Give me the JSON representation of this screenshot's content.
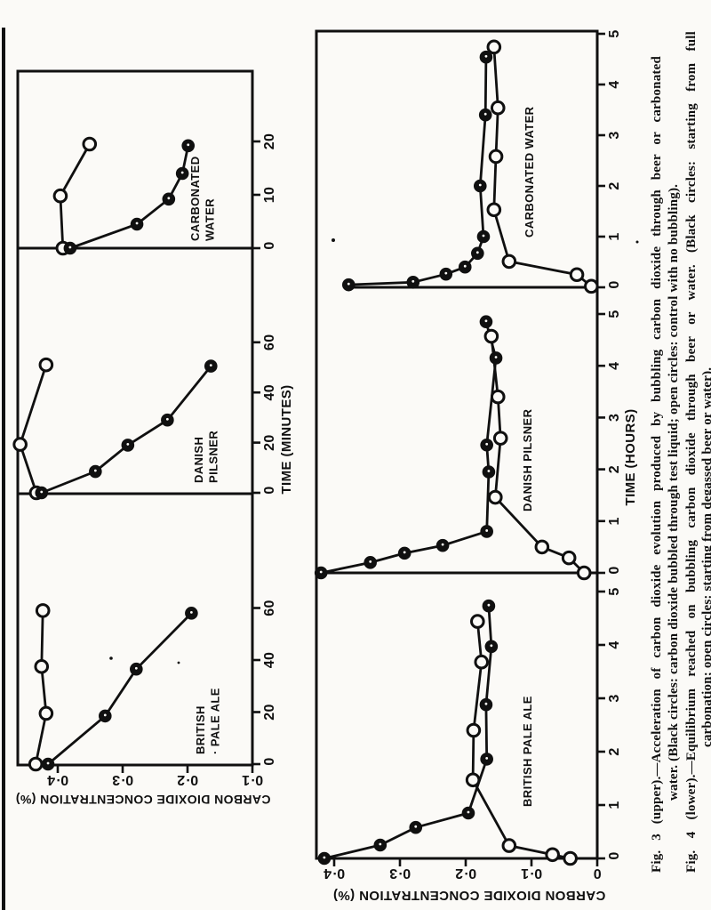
{
  "page": {
    "background": "#fbfaf7",
    "ink": "#101010"
  },
  "captions": {
    "line1": "Fig. 3 (upper).—Acceleration of carbon dioxide evolution produced by bubbling carbon dioxide through beer or carbonated",
    "line2": "water.  (Black circles: carbon dioxide bubbled through test liquid; open circles: control with no bubbling).",
    "line3": "Fig. 4 (lower).—Equilibrium reached on bubbling carbon dioxide through beer or water.  (Black circles: starting from full",
    "line4": "carbonation; open circles: starting from degassed beer or water)."
  },
  "chart_data": [
    {
      "id": "fig3",
      "type": "line",
      "figure_label": "Fig. 3 (upper)",
      "xlabel": "TIME (MINUTES)",
      "ylabel": "CARBON DIOXIDE CONCENTRATION (%)",
      "ylim": [
        0.1,
        0.46
      ],
      "grid": false,
      "y_ticks": [
        {
          "value": 0.4,
          "label": "0·4"
        },
        {
          "value": 0.3,
          "label": "0·3"
        },
        {
          "value": 0.2,
          "label": "0·2"
        },
        {
          "value": 0.1,
          "label": "0·1"
        }
      ],
      "series_meaning": {
        "black": "carbon dioxide bubbled through test liquid",
        "open": "control with no bubbling"
      },
      "panels": [
        {
          "label_lines": [
            "BRITISH",
            "· PALE ALE"
          ],
          "x_ticks": [
            {
              "value": 0,
              "label": "0"
            },
            {
              "value": 20,
              "label": "20"
            },
            {
              "value": 40,
              "label": "40"
            },
            {
              "value": 60,
              "label": "60"
            }
          ],
          "xlim": [
            0,
            104
          ],
          "series": [
            {
              "name": "open",
              "marker": "open-circle",
              "points": [
                [
                  0,
                  0.434
                ],
                [
                  19.5,
                  0.418
                ],
                [
                  37.5,
                  0.425
                ],
                [
                  59,
                  0.423
                ]
              ]
            },
            {
              "name": "black",
              "marker": "filled-circle",
              "points": [
                [
                  0,
                  0.415
                ],
                [
                  18.5,
                  0.327
                ],
                [
                  36.5,
                  0.279
                ],
                [
                  58,
                  0.194
                ]
              ]
            }
          ]
        },
        {
          "label_lines": [
            "DANISH",
            "PILSNER"
          ],
          "x_ticks": [
            {
              "value": 0,
              "label": "0"
            },
            {
              "value": 20,
              "label": "20"
            },
            {
              "value": 40,
              "label": "40"
            },
            {
              "value": 60,
              "label": "60"
            }
          ],
          "xlim": [
            0,
            97
          ],
          "series": [
            {
              "name": "open",
              "marker": "open-circle",
              "points": [
                [
                  0,
                  0.433
                ],
                [
                  19.3,
                  0.458
                ],
                [
                  51,
                  0.418
                ]
              ]
            },
            {
              "name": "black",
              "marker": "filled-circle",
              "points": [
                [
                  0,
                  0.425
                ],
                [
                  8.5,
                  0.342
                ],
                [
                  19,
                  0.292
                ],
                [
                  29,
                  0.231
                ],
                [
                  50.5,
                  0.164
                ]
              ]
            }
          ]
        },
        {
          "label_lines": [
            "CARBONATED",
            "WATER"
          ],
          "x_ticks": [
            {
              "value": 0,
              "label": "0"
            },
            {
              "value": 10,
              "label": "10"
            },
            {
              "value": 20,
              "label": "20"
            }
          ],
          "xlim": [
            0,
            33
          ],
          "series": [
            {
              "name": "open",
              "marker": "open-circle",
              "points": [
                [
                  0,
                  0.392
                ],
                [
                  9.8,
                  0.396
                ],
                [
                  19.5,
                  0.351
                ]
              ]
            },
            {
              "name": "black",
              "marker": "filled-circle",
              "points": [
                [
                  0,
                  0.381
                ],
                [
                  4.5,
                  0.278
                ],
                [
                  9.2,
                  0.229
                ],
                [
                  14,
                  0.208
                ],
                [
                  19.2,
                  0.199
                ]
              ]
            }
          ]
        }
      ]
    },
    {
      "id": "fig4",
      "type": "line",
      "figure_label": "Fig. 4 (lower)",
      "xlabel": "TIME (HOURS)",
      "ylabel": "CARBON DIOXIDE CONCENTRATION (%)",
      "ylim": [
        0,
        0.427
      ],
      "grid": false,
      "y_ticks": [
        {
          "value": 0.4,
          "label": "0·4"
        },
        {
          "value": 0.3,
          "label": "0·3"
        },
        {
          "value": 0.2,
          "label": "0·2"
        },
        {
          "value": 0.1,
          "label": "0·1"
        },
        {
          "value": 0,
          "label": "0"
        }
      ],
      "series_meaning": {
        "black": "starting from full carbonation",
        "open": "starting from degassed beer or water"
      },
      "panels": [
        {
          "label_lines": [
            "BRITISH PALE ALE"
          ],
          "x_ticks": [
            {
              "value": 0,
              "label": "0"
            },
            {
              "value": 1,
              "label": "1"
            },
            {
              "value": 2,
              "label": "2"
            },
            {
              "value": 3,
              "label": "3"
            },
            {
              "value": 4,
              "label": "4"
            },
            {
              "value": 5,
              "label": "5"
            }
          ],
          "xlim": [
            0,
            5.35
          ],
          "series": [
            {
              "name": "open",
              "marker": "open-circle",
              "points": [
                [
                  0,
                  0.041
                ],
                [
                  0.07,
                  0.068
                ],
                [
                  0.24,
                  0.134
                ],
                [
                  1.47,
                  0.189
                ],
                [
                  2.4,
                  0.188
                ],
                [
                  3.68,
                  0.176
                ],
                [
                  4.44,
                  0.182
                ]
              ]
            },
            {
              "name": "black",
              "marker": "filled-circle",
              "points": [
                [
                  0,
                  0.415
                ],
                [
                  0.25,
                  0.33
                ],
                [
                  0.58,
                  0.276
                ],
                [
                  0.85,
                  0.196
                ],
                [
                  1.86,
                  0.168
                ],
                [
                  2.88,
                  0.169
                ],
                [
                  3.97,
                  0.161
                ],
                [
                  4.73,
                  0.165
                ]
              ]
            }
          ]
        },
        {
          "label_lines": [
            "DANISH PILSNER"
          ],
          "x_ticks": [
            {
              "value": 0,
              "label": "0"
            },
            {
              "value": 1,
              "label": "1"
            },
            {
              "value": 2,
              "label": "2"
            },
            {
              "value": 3,
              "label": "3"
            },
            {
              "value": 4,
              "label": "4"
            },
            {
              "value": 5,
              "label": "5"
            }
          ],
          "xlim": [
            0,
            5.45
          ],
          "series": [
            {
              "name": "open",
              "marker": "open-circle",
              "points": [
                [
                  0,
                  0.02
                ],
                [
                  0.29,
                  0.043
                ],
                [
                  0.5,
                  0.084
                ],
                [
                  1.46,
                  0.155
                ],
                [
                  2.6,
                  0.147
                ],
                [
                  3.4,
                  0.151
                ],
                [
                  4.57,
                  0.161
                ]
              ]
            },
            {
              "name": "black",
              "marker": "filled-circle",
              "points": [
                [
                  0,
                  0.42
                ],
                [
                  0.2,
                  0.345
                ],
                [
                  0.38,
                  0.293
                ],
                [
                  0.53,
                  0.235
                ],
                [
                  0.8,
                  0.168
                ],
                [
                  1.95,
                  0.165
                ],
                [
                  2.47,
                  0.168
                ],
                [
                  4.15,
                  0.154
                ],
                [
                  4.85,
                  0.169
                ]
              ]
            }
          ]
        },
        {
          "label_lines": [
            "CARBONATED WATER"
          ],
          "x_ticks": [
            {
              "value": 0,
              "label": "0"
            },
            {
              "value": 1,
              "label": "1"
            },
            {
              "value": 2,
              "label": "2"
            },
            {
              "value": 3,
              "label": "3"
            },
            {
              "value": 4,
              "label": "4"
            },
            {
              "value": 5,
              "label": "5"
            }
          ],
          "xlim": [
            0,
            5.1
          ],
          "series": [
            {
              "name": "open",
              "marker": "open-circle",
              "points": [
                [
                  0.02,
                  0.009
                ],
                [
                  0.25,
                  0.031
                ],
                [
                  0.51,
                  0.134
                ],
                [
                  1.53,
                  0.157
                ],
                [
                  2.58,
                  0.154
                ],
                [
                  3.54,
                  0.151
                ],
                [
                  4.74,
                  0.157
                ]
              ]
            },
            {
              "name": "black",
              "marker": "filled-circle",
              "points": [
                [
                  0.05,
                  0.378
                ],
                [
                  0.1,
                  0.28
                ],
                [
                  0.26,
                  0.23
                ],
                [
                  0.4,
                  0.201
                ],
                [
                  0.67,
                  0.182
                ],
                [
                  1.0,
                  0.173
                ],
                [
                  2.0,
                  0.178
                ],
                [
                  3.4,
                  0.17
                ],
                [
                  4.54,
                  0.169
                ]
              ]
            }
          ]
        }
      ]
    }
  ]
}
